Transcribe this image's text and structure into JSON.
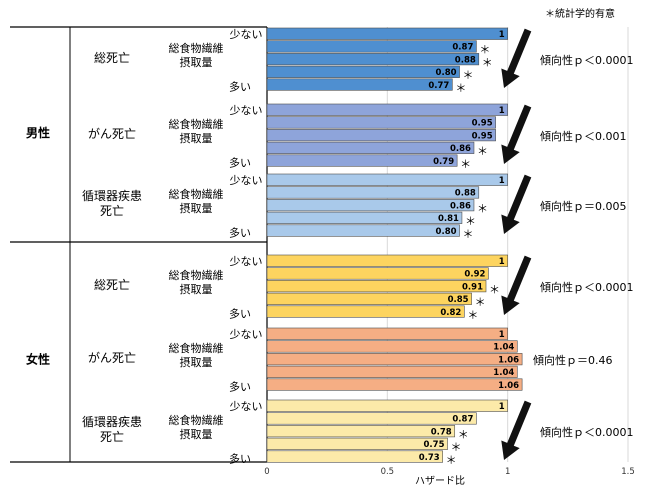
{
  "chart_data": {
    "type": "bar",
    "orientation": "horizontal",
    "xlabel": "ハザード比",
    "xlim": [
      0,
      1.5
    ],
    "xticks": [
      "0",
      "0.5",
      "1",
      "1.5"
    ],
    "grid": true,
    "significance_note": "＊統計学的有意",
    "exposure_label": "総食物繊維\n摂取量",
    "low_label": "少ない",
    "high_label": "多い",
    "sexes": [
      {
        "label": "男性",
        "groups": [
          0,
          1,
          2
        ]
      },
      {
        "label": "女性",
        "groups": [
          3,
          4,
          5
        ]
      }
    ],
    "groups": [
      {
        "outcome": "総死亡",
        "color": "#4F8FD0",
        "values": [
          1,
          0.87,
          0.88,
          0.8,
          0.77
        ],
        "labels": [
          "1",
          "0.87",
          "0.88",
          "0.80",
          "0.77"
        ],
        "significant": [
          false,
          true,
          true,
          true,
          true
        ],
        "trend": "傾向性ｐ＜0.0001",
        "arrow": true
      },
      {
        "outcome": "がん死亡",
        "color": "#8EA4DA",
        "values": [
          1,
          0.95,
          0.95,
          0.86,
          0.79
        ],
        "labels": [
          "1",
          "0.95",
          "0.95",
          "0.86",
          "0.79"
        ],
        "significant": [
          false,
          false,
          false,
          true,
          true
        ],
        "trend": "傾向性ｐ＜0.001",
        "arrow": true
      },
      {
        "outcome": "循環器疾患\n死亡",
        "color": "#A9C9EA",
        "values": [
          1,
          0.88,
          0.86,
          0.81,
          0.8
        ],
        "labels": [
          "1",
          "0.88",
          "0.86",
          "0.81",
          "0.80"
        ],
        "significant": [
          false,
          false,
          true,
          true,
          true
        ],
        "trend": "傾向性ｐ＝0.005",
        "arrow": true
      },
      {
        "outcome": "総死亡",
        "color": "#FDD45F",
        "values": [
          1,
          0.92,
          0.91,
          0.85,
          0.82
        ],
        "labels": [
          "1",
          "0.92",
          "0.91",
          "0.85",
          "0.82"
        ],
        "significant": [
          false,
          false,
          true,
          true,
          true
        ],
        "trend": "傾向性ｐ＜0.0001",
        "arrow": true
      },
      {
        "outcome": "がん死亡",
        "color": "#F5AE84",
        "values": [
          1,
          1.04,
          1.06,
          1.04,
          1.06
        ],
        "labels": [
          "1",
          "1.04",
          "1.06",
          "1.04",
          "1.06"
        ],
        "significant": [
          false,
          false,
          false,
          false,
          false
        ],
        "trend": "傾向性ｐ＝0.46",
        "arrow": false
      },
      {
        "outcome": "循環器疾患\n死亡",
        "color": "#FCEAA9",
        "values": [
          1,
          0.87,
          0.78,
          0.75,
          0.73
        ],
        "labels": [
          "1",
          "0.87",
          "0.78",
          "0.75",
          "0.73"
        ],
        "significant": [
          false,
          false,
          true,
          true,
          true
        ],
        "trend": "傾向性ｐ＜0.0001",
        "arrow": true
      }
    ]
  }
}
